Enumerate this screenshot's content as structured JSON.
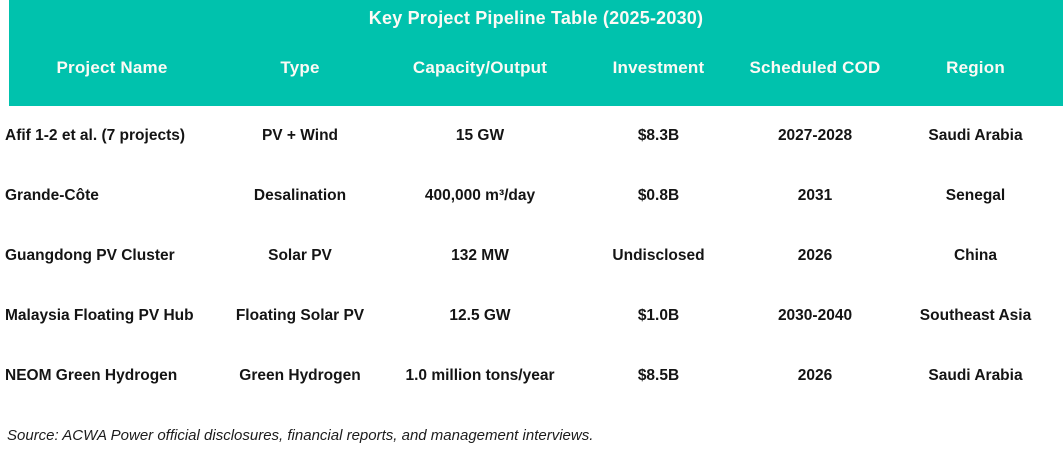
{
  "chart_data": {
    "type": "table",
    "title": "Key Project Pipeline Table (2025-2030)",
    "columns": [
      "Project Name",
      "Type",
      "Capacity/Output",
      "Investment",
      "Scheduled COD",
      "Region"
    ],
    "rows": [
      [
        "Afif 1-2 et al. (7 projects)",
        "PV + Wind",
        "15 GW",
        "$8.3B",
        "2027-2028",
        "Saudi Arabia"
      ],
      [
        "Grande-Côte",
        "Desalination",
        "400,000 m³/day",
        "$0.8B",
        "2031",
        "Senegal"
      ],
      [
        "Guangdong PV Cluster",
        "Solar PV",
        "132 MW",
        "Undisclosed",
        "2026",
        "China"
      ],
      [
        "Malaysia Floating PV Hub",
        "Floating Solar PV",
        "12.5 GW",
        "$1.0B",
        "2030-2040",
        "Southeast Asia"
      ],
      [
        "NEOM Green Hydrogen",
        "Green Hydrogen",
        "1.0 million tons/year",
        "$8.5B",
        "2026",
        "Saudi Arabia"
      ]
    ],
    "source": "Source: ACWA Power official disclosures, financial reports, and management interviews.",
    "layout": {
      "header_position": "top",
      "first_column_align": "left",
      "other_columns_align": "center",
      "gridlines": "none"
    }
  },
  "colors": {
    "header_bg": "#00C2AD",
    "header_text": "#FCFAF5",
    "body_text": "#141414",
    "page_bg": "#FFFFFF"
  }
}
